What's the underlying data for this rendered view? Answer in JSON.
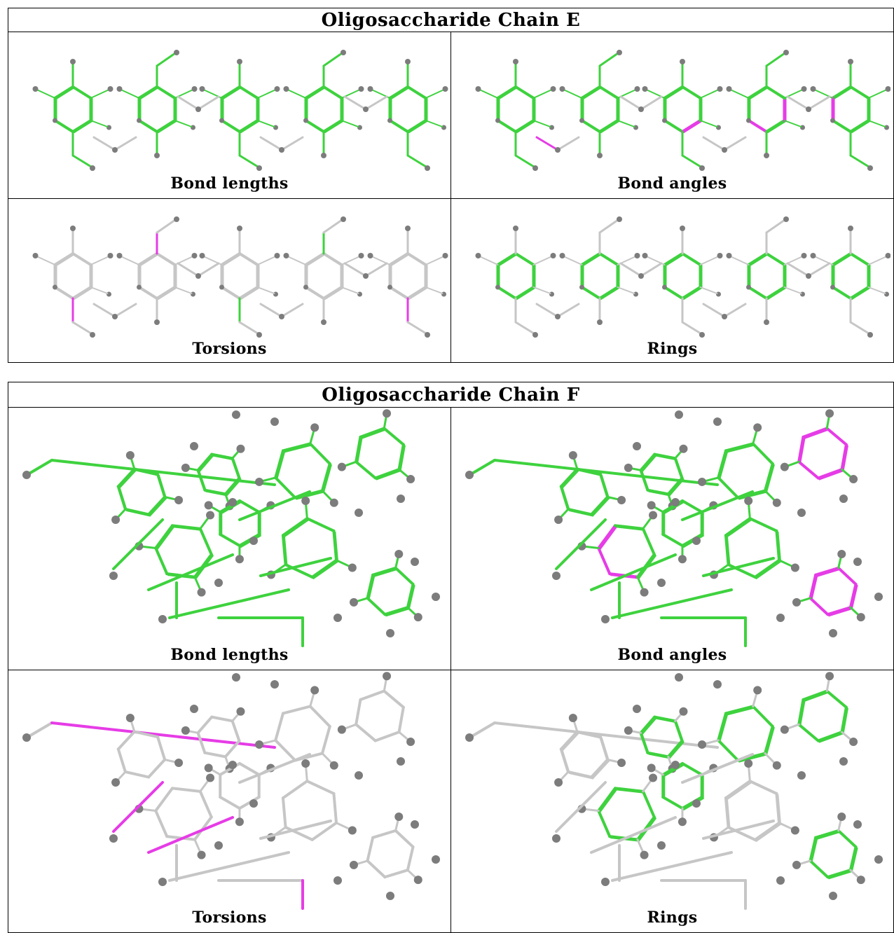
{
  "colors": {
    "ok_bond": "#3ed23e",
    "flag_bond": "#e63ce6",
    "neutral_bond": "#c6c6c6",
    "atom": "#7c7c7c",
    "border": "#000000"
  },
  "tables": [
    {
      "id": "table-e",
      "title": "Oligosaccharide Chain E",
      "panels": [
        {
          "label": "Bond lengths",
          "mode": "lengths"
        },
        {
          "label": "Bond angles",
          "mode": "angles"
        },
        {
          "label": "Torsions",
          "mode": "torsions"
        },
        {
          "label": "Rings",
          "mode": "rings"
        }
      ]
    },
    {
      "id": "table-f",
      "title": "Oligosaccharide Chain F",
      "panels": [
        {
          "label": "Bond lengths",
          "mode": "lengths"
        },
        {
          "label": "Bond angles",
          "mode": "angles"
        },
        {
          "label": "Torsions",
          "mode": "torsions"
        },
        {
          "label": "Rings",
          "mode": "rings"
        }
      ]
    }
  ]
}
